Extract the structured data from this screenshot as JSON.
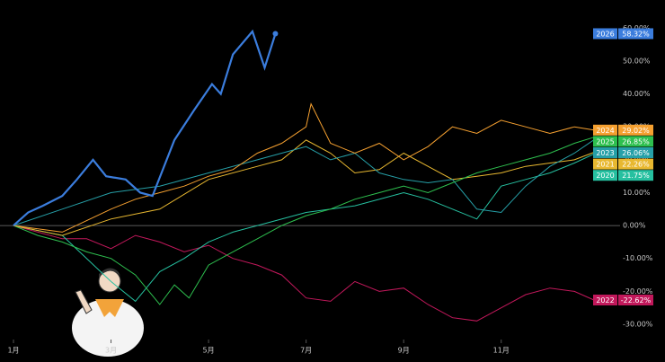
{
  "chart_data": {
    "type": "line",
    "xlim": [
      1,
      13.4
    ],
    "ylim": [
      -33,
      62
    ],
    "xticks": [
      {
        "value": 1,
        "label": "1月"
      },
      {
        "value": 3,
        "label": "3月"
      },
      {
        "value": 5,
        "label": "5月"
      },
      {
        "value": 7,
        "label": "7月"
      },
      {
        "value": 9,
        "label": "9月"
      },
      {
        "value": 11,
        "label": "11月"
      }
    ],
    "yticks": [
      {
        "value": 60,
        "label": "60.00%"
      },
      {
        "value": 50,
        "label": "50.00%"
      },
      {
        "value": 40,
        "label": "40.00%"
      },
      {
        "value": 30,
        "label": "30.00%"
      },
      {
        "value": 20,
        "label": "20.00%"
      },
      {
        "value": 10,
        "label": "10.00%"
      },
      {
        "value": 0,
        "label": "0.00%"
      },
      {
        "value": -10,
        "label": "-10.00%"
      },
      {
        "value": -20,
        "label": "-20.00%"
      },
      {
        "value": -30,
        "label": "-30.00%"
      }
    ],
    "series": [
      {
        "name": "2026",
        "color": "#3b7ddd",
        "x": [
          1,
          1.3,
          1.6,
          2,
          2.3,
          2.63,
          2.9,
          3.3,
          3.6,
          3.85,
          4.3,
          4.7,
          5.07,
          5.25,
          5.5,
          5.9,
          6.15,
          6.37
        ],
        "values": [
          0,
          4,
          6,
          9,
          14,
          20,
          15,
          14,
          10,
          9,
          26,
          35,
          43,
          40,
          52,
          59,
          48,
          58.32
        ],
        "value_labels": [
          null,
          null,
          null,
          null,
          null,
          null,
          null,
          null,
          null,
          null,
          null,
          null,
          null,
          null,
          null,
          null,
          null,
          "58.32%"
        ]
      },
      {
        "name": "2024",
        "color": "#f5a030",
        "x": [
          1,
          2,
          3,
          3.5,
          4,
          4.5,
          5,
          5.5,
          6,
          6.5,
          7,
          7.1,
          7.5,
          8,
          8.5,
          9,
          9.5,
          10,
          10.5,
          11,
          11.5,
          12,
          12.5,
          12.9
        ],
        "values": [
          0,
          -2,
          5,
          8,
          10,
          12,
          15,
          17,
          22,
          25,
          30,
          37,
          25,
          22,
          25,
          20,
          24,
          30,
          28,
          32,
          30,
          28,
          30,
          29.02
        ],
        "value_labels": [
          null,
          null,
          null,
          null,
          null,
          null,
          null,
          null,
          null,
          null,
          null,
          null,
          null,
          null,
          null,
          null,
          null,
          null,
          null,
          null,
          null,
          null,
          null,
          "29.02%"
        ]
      },
      {
        "name": "2025",
        "color": "#2ec04f",
        "x": [
          1,
          1.5,
          2,
          2.5,
          3,
          3.5,
          4,
          4.3,
          4.6,
          5,
          5.5,
          6,
          6.5,
          7,
          7.5,
          8,
          8.5,
          9,
          9.5,
          10,
          10.5,
          11,
          11.5,
          12,
          12.5,
          12.9
        ],
        "values": [
          0,
          -3,
          -5,
          -8,
          -10,
          -15,
          -24,
          -18,
          -22,
          -12,
          -8,
          -4,
          0,
          3,
          5,
          8,
          10,
          12,
          10,
          13,
          16,
          18,
          20,
          22,
          25,
          26.85
        ],
        "value_labels": [
          null,
          null,
          null,
          null,
          null,
          null,
          null,
          null,
          null,
          null,
          null,
          null,
          null,
          null,
          null,
          null,
          null,
          null,
          null,
          null,
          null,
          null,
          null,
          null,
          null,
          "26.85%"
        ]
      },
      {
        "name": "2023",
        "color": "#26a0a8",
        "x": [
          1,
          2,
          3,
          4,
          5,
          6,
          6.5,
          7,
          7.5,
          8,
          8.5,
          9,
          9.5,
          10,
          10.5,
          11,
          11.5,
          12,
          12.5,
          12.9
        ],
        "values": [
          0,
          5,
          10,
          12,
          16,
          20,
          22,
          24,
          20,
          22,
          16,
          14,
          13,
          14,
          5,
          4,
          12,
          18,
          22,
          26.06
        ],
        "value_labels": [
          null,
          null,
          null,
          null,
          null,
          null,
          null,
          null,
          null,
          null,
          null,
          null,
          null,
          null,
          null,
          null,
          null,
          null,
          null,
          "26.06%"
        ]
      },
      {
        "name": "2021",
        "color": "#e8b830",
        "x": [
          1,
          2,
          3,
          4,
          5,
          6,
          6.5,
          7,
          7.5,
          8,
          8.5,
          9,
          9.5,
          10,
          10.5,
          11,
          11.5,
          12,
          12.5,
          12.9
        ],
        "values": [
          0,
          -3,
          2,
          5,
          14,
          18,
          20,
          26,
          22,
          16,
          17,
          22,
          18,
          14,
          15,
          16,
          18,
          19,
          20,
          22.26
        ],
        "value_labels": [
          null,
          null,
          null,
          null,
          null,
          null,
          null,
          null,
          null,
          null,
          null,
          null,
          null,
          null,
          null,
          null,
          null,
          null,
          null,
          "22.26%"
        ]
      },
      {
        "name": "2020",
        "color": "#26c0a0",
        "x": [
          1,
          2,
          2.5,
          3,
          3.5,
          4,
          4.5,
          5,
          5.5,
          6,
          7,
          8,
          9,
          9.5,
          10,
          10.5,
          11,
          11.5,
          12,
          12.5,
          12.9
        ],
        "values": [
          0,
          -3,
          -10,
          -17,
          -23,
          -14,
          -10,
          -5,
          -2,
          0,
          4,
          6,
          10,
          8,
          5,
          2,
          12,
          14,
          16,
          19,
          21.75
        ],
        "value_labels": [
          null,
          null,
          null,
          null,
          null,
          null,
          null,
          null,
          null,
          null,
          null,
          null,
          null,
          null,
          null,
          null,
          null,
          null,
          null,
          null,
          "21.75%"
        ]
      },
      {
        "name": "2022",
        "color": "#c2185b",
        "x": [
          1,
          1.5,
          2,
          2.5,
          3,
          3.5,
          4,
          4.5,
          5,
          5.5,
          6,
          6.5,
          7,
          7.5,
          8,
          8.5,
          9,
          9.5,
          10,
          10.5,
          11,
          11.5,
          12,
          12.5,
          12.9
        ],
        "values": [
          0,
          -2,
          -4,
          -4,
          -7,
          -3,
          -5,
          -8,
          -6,
          -10,
          -12,
          -15,
          -22,
          -23,
          -17,
          -20,
          -19,
          -24,
          -28,
          -29,
          -25,
          -21,
          -19,
          -20,
          -22.62
        ],
        "value_labels": [
          null,
          null,
          null,
          null,
          null,
          null,
          null,
          null,
          null,
          null,
          null,
          null,
          null,
          null,
          null,
          null,
          null,
          null,
          null,
          null,
          null,
          null,
          null,
          null,
          "-22.62%"
        ]
      }
    ]
  }
}
